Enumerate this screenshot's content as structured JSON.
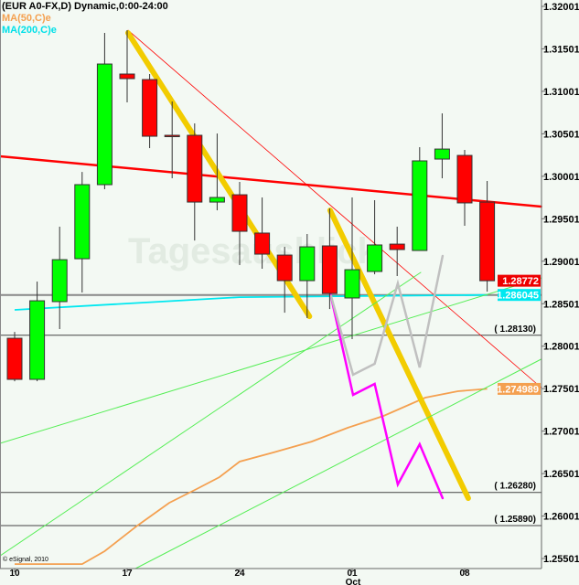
{
  "header": {
    "title": "(EUR A0-FX,D) Dynamic,0:00-24:00",
    "study_ma50": "MA(50,C)e",
    "study_ma200": "MA(200,C)e"
  },
  "copyright": "© eSignal, 2010",
  "watermark": "Tagesausblick",
  "colors": {
    "background": "#f3f9f3",
    "up_candle": "#00ff00",
    "down_candle": "#ff0000",
    "ma50": "#f4a050",
    "ma200": "#00e8f0",
    "trend_red": "#ff0000",
    "trend_yellow": "#f2cc00",
    "projection_magenta": "#ff00ff",
    "projection_gray": "#c0c0c0",
    "trend_green": "#55ee55"
  },
  "chart_data": {
    "type": "candlestick",
    "ylim": [
      1.2545,
      1.3205
    ],
    "y_ticks": [
      "1.320013",
      "1.315013",
      "1.310013",
      "1.305013",
      "1.300013",
      "1.295013",
      "1.290013",
      "1.285013",
      "1.280013",
      "1.275013",
      "1.270013",
      "1.265013",
      "1.260013",
      "1.255013"
    ],
    "x_ticks": [
      {
        "label": "10",
        "index": 0
      },
      {
        "label": "17",
        "index": 5
      },
      {
        "label": "24",
        "index": 10
      },
      {
        "label": "01",
        "index": 15,
        "sublabel": "Oct"
      },
      {
        "label": "08",
        "index": 20
      }
    ],
    "candles": [
      {
        "o": 1.28095,
        "h": 1.2817,
        "l": 1.27589,
        "c": 1.27611
      },
      {
        "o": 1.27611,
        "h": 1.28762,
        "l": 1.27589,
        "c": 1.28536
      },
      {
        "o": 1.28526,
        "h": 1.29408,
        "l": 1.28203,
        "c": 1.2902
      },
      {
        "o": 1.29031,
        "h": 1.30053,
        "l": 1.28633,
        "c": 1.29903
      },
      {
        "o": 1.29903,
        "h": 1.31689,
        "l": 1.29849,
        "c": 1.31323
      },
      {
        "o": 1.31205,
        "h": 1.31721,
        "l": 1.30871,
        "c": 1.31151
      },
      {
        "o": 1.3114,
        "h": 1.31205,
        "l": 1.30333,
        "c": 1.30473
      },
      {
        "o": 1.30484,
        "h": 1.30882,
        "l": 1.29978,
        "c": 1.30473
      },
      {
        "o": 1.30484,
        "h": 1.30624,
        "l": 1.29246,
        "c": 1.29698
      },
      {
        "o": 1.29698,
        "h": 1.30505,
        "l": 1.29601,
        "c": 1.29752
      },
      {
        "o": 1.29784,
        "h": 1.29935,
        "l": 1.28956,
        "c": 1.29354
      },
      {
        "o": 1.29333,
        "h": 1.29752,
        "l": 1.28913,
        "c": 1.29085
      },
      {
        "o": 1.29074,
        "h": 1.29171,
        "l": 1.28396,
        "c": 1.28773
      },
      {
        "o": 1.28773,
        "h": 1.29322,
        "l": 1.28332,
        "c": 1.29171
      },
      {
        "o": 1.29182,
        "h": 1.29623,
        "l": 1.28439,
        "c": 1.28622
      },
      {
        "o": 1.28569,
        "h": 1.29752,
        "l": 1.28084,
        "c": 1.28902
      },
      {
        "o": 1.28881,
        "h": 1.2972,
        "l": 1.28848,
        "c": 1.29193
      },
      {
        "o": 1.29203,
        "h": 1.29408,
        "l": 1.28827,
        "c": 1.29139
      },
      {
        "o": 1.29128,
        "h": 1.30344,
        "l": 1.29128,
        "c": 1.30183
      },
      {
        "o": 1.30204,
        "h": 1.30742,
        "l": 1.29978,
        "c": 1.30322
      },
      {
        "o": 1.30247,
        "h": 1.30312,
        "l": 1.29419,
        "c": 1.29688
      },
      {
        "o": 1.29698,
        "h": 1.29946,
        "l": 1.28644,
        "c": 1.28772
      }
    ],
    "ma50": [
      [
        0,
        1.25437
      ],
      [
        3,
        1.25437
      ],
      [
        4,
        1.25588
      ],
      [
        5.45,
        1.25889
      ],
      [
        6.87,
        1.26158
      ],
      [
        8.09,
        1.2632
      ],
      [
        9.1,
        1.2646
      ],
      [
        10,
        1.26643
      ],
      [
        11.5,
        1.2675
      ],
      [
        13.2,
        1.26879
      ],
      [
        14.8,
        1.27041
      ],
      [
        16.4,
        1.27181
      ],
      [
        18.25,
        1.27396
      ],
      [
        19.7,
        1.27471
      ],
      [
        21,
        1.274989
      ]
    ],
    "ma200": [
      [
        0,
        1.28429
      ],
      [
        10,
        1.28579
      ],
      [
        15,
        1.2859
      ],
      [
        21,
        1.286045
      ]
    ],
    "horizontal_levels": [
      {
        "value": 1.2813,
        "label": "( 1.28130)"
      },
      {
        "value": 1.2628,
        "label": "( 1.26280)"
      },
      {
        "value": 1.2589,
        "label": "( 1.25890)"
      },
      {
        "value": 1.286045,
        "label": ""
      }
    ],
    "price_badges": [
      {
        "text": "1.28772",
        "value": 1.28772,
        "color": "#ee0000"
      },
      {
        "text": "1.286045",
        "value": 1.286045,
        "color": "#00e8f0"
      },
      {
        "text": "1.274989",
        "value": 1.274989,
        "color": "#f4a050"
      }
    ],
    "drawings": [
      {
        "kind": "trend_red_thick",
        "points": [
          [
            -0.65,
            1.30237
          ],
          [
            23.4,
            1.29645
          ]
        ]
      },
      {
        "kind": "trend_red_thin",
        "points": [
          [
            5.04,
            1.31721
          ],
          [
            23.4,
            1.27514
          ]
        ]
      },
      {
        "kind": "trend_yellow",
        "points": [
          [
            5.04,
            1.31689
          ],
          [
            13.1,
            1.28353
          ]
        ]
      },
      {
        "kind": "trend_yellow",
        "points": [
          [
            14.02,
            1.29601
          ],
          [
            20.16,
            1.26212
          ]
        ]
      },
      {
        "kind": "trend_green",
        "points": [
          [
            -0.65,
            1.26858
          ],
          [
            23.4,
            1.28805
          ]
        ]
      },
      {
        "kind": "trend_green",
        "points": [
          [
            -0.65,
            1.25534
          ],
          [
            18.05,
            1.2887
          ]
        ]
      },
      {
        "kind": "trend_green",
        "points": [
          [
            5.37,
            1.25384
          ],
          [
            23.4,
            1.27848
          ]
        ]
      },
      {
        "kind": "projection_magenta",
        "points": [
          [
            14.02,
            1.28633
          ],
          [
            15.04,
            1.27428
          ],
          [
            16.0,
            1.27557
          ],
          [
            17.03,
            1.26374
          ],
          [
            18.0,
            1.26847
          ],
          [
            19.02,
            1.26212
          ]
        ]
      },
      {
        "kind": "projection_gray",
        "points": [
          [
            14.06,
            1.28592
          ],
          [
            15.04,
            1.27665
          ],
          [
            16.0,
            1.27794
          ],
          [
            17.03,
            1.28741
          ],
          [
            18.0,
            1.27751
          ],
          [
            19.02,
            1.29064
          ]
        ]
      }
    ]
  }
}
